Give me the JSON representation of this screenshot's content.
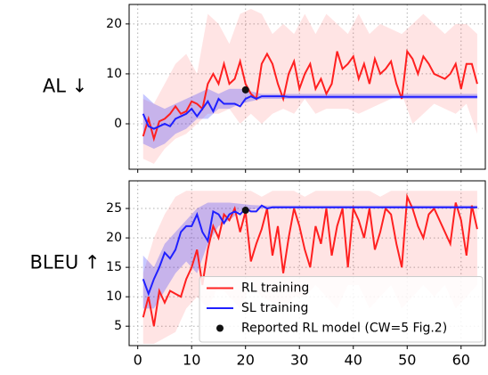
{
  "chart_data": [
    {
      "type": "line",
      "ylabel": "AL ↓",
      "xlim": [
        -1.6,
        64.5
      ],
      "ylim": [
        -9.1,
        23.9
      ],
      "xticks": [
        0,
        10,
        20,
        30,
        40,
        50,
        60
      ],
      "yticks": [
        0,
        10,
        20
      ],
      "grid": true,
      "show_xtick_labels": false,
      "series": [
        {
          "color": "#ff2020",
          "band_alpha": 0.12,
          "x": [
            1,
            2,
            3,
            4,
            5,
            6,
            7,
            8,
            9,
            10,
            11,
            12,
            13,
            14,
            15,
            16,
            17,
            18,
            19,
            20,
            21,
            22,
            23,
            24,
            25,
            26,
            27,
            28,
            29,
            30,
            31,
            32,
            33,
            34,
            35,
            36,
            37,
            38,
            39,
            40,
            41,
            42,
            43,
            44,
            45,
            46,
            47,
            48,
            49,
            50,
            51,
            52,
            53,
            54,
            55,
            56,
            57,
            58,
            59,
            60,
            61,
            62,
            63
          ],
          "values": [
            -2.5,
            1,
            -3,
            0.5,
            1,
            2,
            3.5,
            2,
            2.5,
            4.5,
            4,
            3,
            8,
            10,
            8,
            12,
            8,
            9,
            12.5,
            8,
            6,
            5,
            12,
            14,
            12,
            8,
            5,
            10,
            12.5,
            7,
            10,
            12,
            7,
            9,
            6,
            8,
            14.5,
            11,
            12,
            13.5,
            9,
            12,
            8,
            13,
            10,
            11,
            12.5,
            8,
            5,
            14.5,
            13,
            10,
            13.5,
            12,
            10,
            9.5,
            9,
            10,
            12,
            7,
            12,
            12,
            8
          ],
          "band": {
            "x": [
              1,
              3,
              5,
              7,
              9,
              11,
              13,
              15,
              17,
              19,
              21,
              23,
              25,
              27,
              29,
              31,
              33,
              35,
              37,
              39,
              41,
              43,
              45,
              47,
              49,
              51,
              53,
              55,
              57,
              59,
              61,
              63
            ],
            "lower": [
              -7,
              -8,
              -5,
              -3,
              -2,
              0,
              2,
              2,
              3,
              0,
              2,
              0,
              2,
              3,
              2,
              5,
              2,
              3,
              3,
              3,
              2,
              3,
              4,
              5,
              6,
              0,
              2,
              4,
              3,
              2,
              4,
              -2
            ],
            "upper": [
              5,
              4,
              8,
              12,
              14,
              10,
              22,
              20,
              16,
              22,
              23,
              22,
              18,
              20,
              18,
              22,
              18,
              22,
              20,
              18,
              22,
              18,
              20,
              19,
              18,
              20,
              22,
              20,
              18,
              20,
              20,
              18
            ]
          }
        },
        {
          "color": "#2020ff",
          "band_alpha": 0.25,
          "x": [
            1,
            2,
            3,
            4,
            5,
            6,
            7,
            8,
            9,
            10,
            11,
            12,
            13,
            14,
            15,
            16,
            17,
            18,
            19,
            20,
            21,
            22,
            23,
            24,
            25,
            26,
            27,
            28,
            29,
            30,
            31,
            32,
            33,
            34,
            35,
            36,
            37,
            38,
            39,
            40,
            41,
            42,
            43,
            44,
            45,
            46,
            47,
            48,
            49,
            50,
            51,
            52,
            53,
            54,
            55,
            56,
            57,
            58,
            59,
            60,
            61,
            62,
            63
          ],
          "values": [
            2,
            -0.5,
            -1,
            -0.5,
            0,
            -0.5,
            1,
            1.5,
            2,
            3,
            1.5,
            3,
            4.5,
            2.5,
            5,
            4,
            4,
            4,
            3.5,
            5,
            5.5,
            5,
            5.5,
            5.5,
            5.5,
            5.5,
            5.5,
            5.4,
            5.4,
            5.4,
            5.4,
            5.4,
            5.4,
            5.4,
            5.4,
            5.4,
            5.4,
            5.4,
            5.4,
            5.4,
            5.4,
            5.4,
            5.4,
            5.4,
            5.4,
            5.4,
            5.4,
            5.4,
            5.4,
            5.4,
            5.4,
            5.4,
            5.4,
            5.4,
            5.4,
            5.4,
            5.4,
            5.4,
            5.4,
            5.4,
            5.4,
            5.4,
            5.4
          ],
          "band": {
            "x": [
              1,
              3,
              5,
              7,
              9,
              11,
              13,
              15,
              17,
              19,
              21,
              23,
              25,
              27,
              29,
              31,
              33,
              35,
              37,
              39,
              41,
              43,
              45,
              47,
              49,
              51,
              53,
              55,
              57,
              59,
              61,
              63
            ],
            "lower": [
              -4,
              -5,
              -4,
              -2,
              -1,
              1,
              1,
              3,
              3,
              4,
              4.5,
              5,
              5,
              5,
              5,
              5,
              5,
              5,
              5,
              5,
              5,
              5,
              5,
              5,
              5,
              5,
              5,
              5,
              5,
              5,
              5,
              5
            ],
            "upper": [
              6,
              4,
              3,
              4,
              5,
              6,
              7,
              6,
              7,
              7,
              6.5,
              6,
              6,
              6,
              6,
              6,
              6,
              6,
              6,
              6,
              6,
              6,
              6,
              6,
              6,
              6,
              6,
              6,
              6,
              6,
              6,
              6
            ]
          }
        },
        {
          "color": "#111111",
          "marker": "dot",
          "x": [
            20
          ],
          "values": [
            6.8
          ]
        }
      ]
    },
    {
      "type": "line",
      "ylabel": "BLEU ↑",
      "xlim": [
        -1.6,
        64.5
      ],
      "ylim": [
        1.7,
        29.7
      ],
      "xticks": [
        0,
        10,
        20,
        30,
        40,
        50,
        60
      ],
      "yticks": [
        5,
        10,
        15,
        20,
        25
      ],
      "grid": true,
      "show_xtick_labels": true,
      "legend": "lower right",
      "series": [
        {
          "name": "RL training",
          "color": "#ff2020",
          "band_alpha": 0.12,
          "x": [
            1,
            2,
            3,
            4,
            5,
            6,
            7,
            8,
            9,
            10,
            11,
            12,
            13,
            14,
            15,
            16,
            17,
            18,
            19,
            20,
            21,
            22,
            23,
            24,
            25,
            26,
            27,
            28,
            29,
            30,
            31,
            32,
            33,
            34,
            35,
            36,
            37,
            38,
            39,
            40,
            41,
            42,
            43,
            44,
            45,
            46,
            47,
            48,
            49,
            50,
            51,
            52,
            53,
            54,
            55,
            56,
            57,
            58,
            59,
            60,
            61,
            62,
            63
          ],
          "values": [
            6.5,
            10,
            5,
            11,
            9,
            11,
            10.5,
            10,
            13,
            15,
            18,
            12,
            18,
            22,
            20,
            24,
            23,
            25,
            21,
            24.5,
            16,
            19,
            21.5,
            25,
            17,
            22,
            14,
            20,
            25,
            22,
            18,
            15,
            22,
            19,
            25,
            17,
            22,
            25,
            15,
            25,
            23,
            20,
            25,
            18,
            21,
            25,
            24,
            19,
            15,
            27,
            25,
            22,
            20,
            24,
            25,
            23,
            21,
            19,
            26,
            23,
            17,
            25.5,
            21.5
          ],
          "band": {
            "x": [
              1,
              3,
              5,
              7,
              9,
              11,
              13,
              15,
              17,
              19,
              21,
              23,
              25,
              27,
              29,
              31,
              33,
              35,
              37,
              39,
              41,
              43,
              45,
              47,
              49,
              51,
              53,
              55,
              57,
              59,
              61,
              63
            ],
            "lower": [
              2,
              2,
              3,
              4,
              8,
              10,
              8,
              12,
              10,
              8,
              12,
              10,
              9,
              8,
              10,
              10,
              12,
              10,
              8,
              12,
              12,
              8,
              10,
              12,
              8,
              10,
              12,
              10,
              12,
              8,
              10,
              12
            ],
            "upper": [
              14,
              20,
              24,
              27,
              28,
              28,
              28,
              28,
              28,
              28,
              28,
              27,
              28,
              28,
              28,
              27,
              28,
              28,
              28,
              28,
              28,
              28,
              27,
              28,
              28,
              28,
              28,
              28,
              28,
              28,
              28,
              28
            ]
          }
        },
        {
          "name": "SL training",
          "color": "#2020ff",
          "band_alpha": 0.25,
          "x": [
            1,
            2,
            3,
            4,
            5,
            6,
            7,
            8,
            9,
            10,
            11,
            12,
            13,
            14,
            15,
            16,
            17,
            18,
            19,
            20,
            21,
            22,
            23,
            24,
            25,
            26,
            27,
            28,
            29,
            30,
            31,
            32,
            33,
            34,
            35,
            36,
            37,
            38,
            39,
            40,
            41,
            42,
            43,
            44,
            45,
            46,
            47,
            48,
            49,
            50,
            51,
            52,
            53,
            54,
            55,
            56,
            57,
            58,
            59,
            60,
            61,
            62,
            63
          ],
          "values": [
            13,
            10.5,
            13,
            15,
            17.5,
            16.5,
            18,
            21,
            22,
            22,
            24,
            21,
            19.5,
            24.5,
            24,
            22.5,
            24,
            24.5,
            24,
            25,
            24.5,
            24.5,
            25.5,
            25,
            25.2,
            25.2,
            25.2,
            25.2,
            25.2,
            25.2,
            25.2,
            25.2,
            25.2,
            25.2,
            25.2,
            25.2,
            25.2,
            25.2,
            25.2,
            25.2,
            25.2,
            25.2,
            25.2,
            25.2,
            25.2,
            25.2,
            25.2,
            25.2,
            25.2,
            25.2,
            25.2,
            25.2,
            25.2,
            25.2,
            25.2,
            25.2,
            25.2,
            25.2,
            25.2,
            25.2,
            25.2,
            25.2,
            25.2
          ],
          "band": {
            "x": [
              1,
              3,
              5,
              7,
              9,
              11,
              13,
              15,
              17,
              19,
              21,
              23,
              25,
              27,
              29,
              31,
              33,
              35,
              37,
              39,
              41,
              43,
              45,
              47,
              49,
              51,
              53,
              55,
              57,
              59,
              61,
              63
            ],
            "lower": [
              8,
              8,
              11,
              14,
              16,
              14,
              19,
              22,
              23,
              24.5,
              24.8,
              25,
              25,
              25,
              25,
              25,
              25,
              25,
              25,
              25,
              25,
              25,
              25,
              25,
              25,
              25,
              25,
              25,
              25,
              25,
              25,
              25
            ],
            "upper": [
              17,
              15,
              19,
              21,
              23,
              25,
              26,
              26,
              26,
              25.8,
              25.6,
              25.5,
              25.5,
              25.5,
              25.5,
              25.5,
              25.5,
              25.5,
              25.5,
              25.5,
              25.5,
              25.5,
              25.5,
              25.5,
              25.5,
              25.5,
              25.5,
              25.5,
              25.5,
              25.5,
              25.5,
              25.5
            ]
          }
        },
        {
          "name": "Reported RL model (CW=5 Fig.2)",
          "color": "#111111",
          "marker": "dot",
          "x": [
            20
          ],
          "values": [
            24.7
          ]
        }
      ]
    }
  ]
}
